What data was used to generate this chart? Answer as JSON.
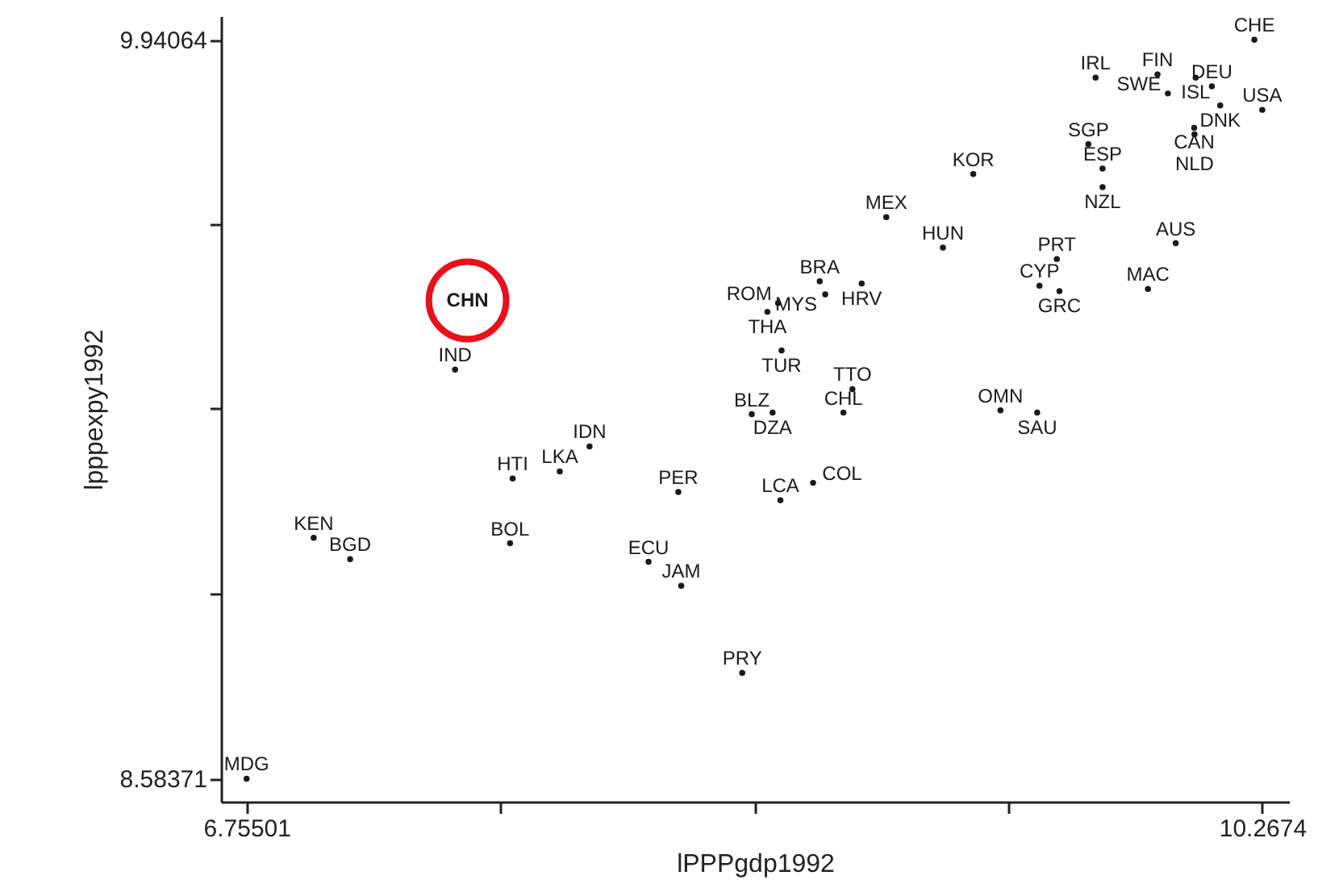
{
  "chart_data": {
    "type": "scatter",
    "xlabel": "lPPPgdp1992",
    "ylabel": "lpppexpy1992",
    "xlim": [
      6.6665,
      10.3597
    ],
    "ylim": [
      8.5414,
      9.984
    ],
    "xticks": [
      6.75501,
      {
        "value": 7.633108,
        "label": null
      },
      {
        "value": 8.511205,
        "label": null
      },
      {
        "value": 9.389303,
        "label": null
      },
      10.2674
    ],
    "yticks": [
      8.58371,
      {
        "value": 8.923943,
        "label": null
      },
      {
        "value": 9.263175,
        "label": null
      },
      {
        "value": 9.602408,
        "label": null
      },
      9.94064
    ],
    "grid": false,
    "series": [
      {
        "type": "scatter",
        "marker": "none",
        "color": "#1a1a1a",
        "x": [
          10.24,
          9.691,
          9.905,
          10.037,
          10.093,
          9.941,
          10.122,
          10.2674,
          10.032,
          10.033,
          9.666,
          9.268,
          9.715,
          9.715,
          8.967,
          9.163,
          9.968,
          9.557,
          9.497,
          9.566,
          9.872,
          8.737,
          8.882,
          8.756,
          8.593,
          8.556,
          8.605,
          8.85,
          8.502,
          8.574,
          8.819,
          9.362,
          9.489,
          7.476,
          7.941,
          7.675,
          7.838,
          8.248,
          6.987,
          7.113,
          7.666,
          8.145,
          8.258,
          8.469,
          8.601,
          8.714,
          6.75501
        ],
        "values": [
          9.94064,
          9.871,
          9.877,
          9.871,
          9.855,
          9.842,
          9.82,
          9.812,
          9.779,
          9.767,
          9.749,
          9.694,
          9.704,
          9.67,
          9.615,
          9.559,
          9.567,
          9.538,
          9.489,
          9.479,
          9.483,
          9.497,
          9.493,
          9.473,
          9.457,
          9.441,
          9.37,
          9.299,
          9.253,
          9.256,
          9.256,
          9.26,
          9.256,
          9.335,
          9.194,
          9.135,
          9.148,
          9.11,
          9.026,
          8.987,
          9.016,
          8.982,
          8.938,
          8.778,
          9.095,
          9.127,
          8.58371
        ],
        "value_labels": [
          "CHE",
          "IRL",
          "FIN",
          "ISL",
          "DEU",
          "SWE",
          "DNK",
          "USA",
          "CAN",
          "NLD",
          "SGP",
          "KOR",
          "ESP",
          "NZL",
          "MEX",
          "HUN",
          "AUS",
          "PRT",
          "CYP",
          "GRC",
          "MAC",
          "BRA",
          "HRV",
          "MYS",
          "ROM",
          "THA",
          "TUR",
          "TTO",
          "BLZ",
          "DZA",
          "CHL",
          "OMN",
          "SAU",
          "IND",
          "IDN",
          "HTI",
          "LKA",
          "PER",
          "KEN",
          "BGD",
          "BOL",
          "ECU",
          "JAM",
          "PRY",
          "LCA",
          "COL",
          "MDG"
        ]
      },
      {
        "type": "scatter",
        "marker": "circle",
        "color": "#e8101a",
        "x": [
          7.519
        ],
        "values": [
          9.462
        ],
        "value_labels": [
          "CHN"
        ]
      }
    ]
  }
}
